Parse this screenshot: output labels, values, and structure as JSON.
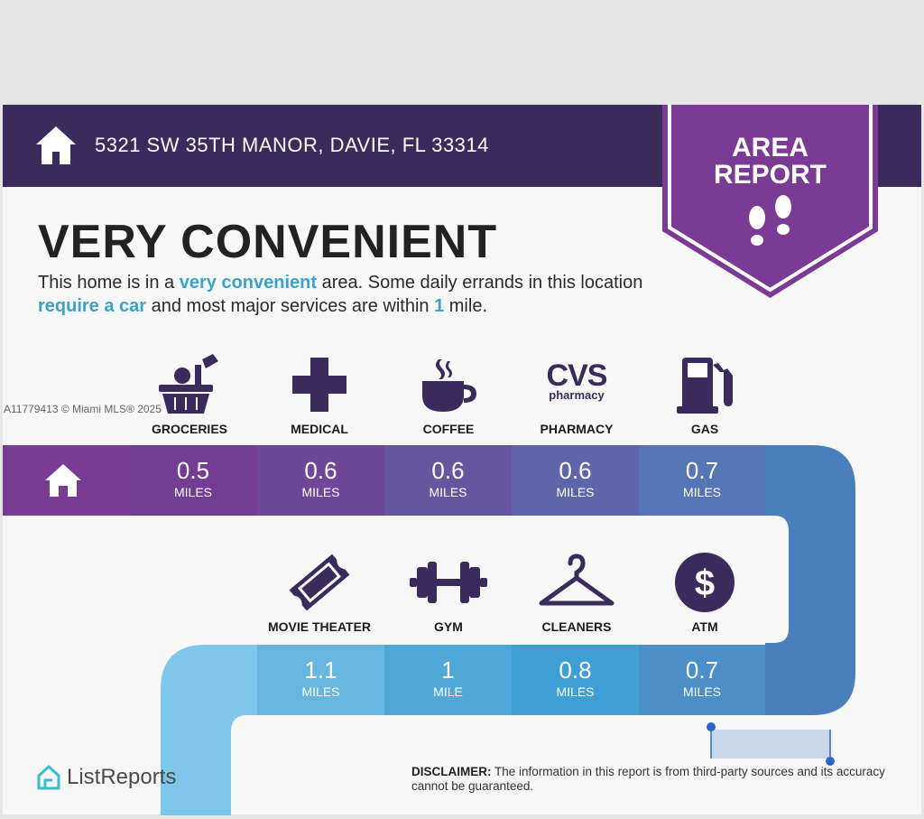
{
  "header": {
    "address": "5321 SW 35TH MANOR, DAVIE, FL 33314",
    "badge_line1": "AREA",
    "badge_line2": "REPORT"
  },
  "headline": "VERY CONVENIENT",
  "description": {
    "p1": "This home is in a ",
    "p1_hl": "very convenient",
    "p2": " area. Some daily errands in this location ",
    "p2_hl": "require a car",
    "p3": " and most major services are within ",
    "p3_hl": "1",
    "p4": " mile."
  },
  "watermark": "A11779413 © Miami MLS® 2025",
  "row1": [
    {
      "label": "GROCERIES",
      "value": "0.5",
      "unit": "MILES",
      "icon": "groceries-basket-icon"
    },
    {
      "label": "MEDICAL",
      "value": "0.6",
      "unit": "MILES",
      "icon": "medical-cross-icon"
    },
    {
      "label": "COFFEE",
      "value": "0.6",
      "unit": "MILES",
      "icon": "coffee-cup-icon"
    },
    {
      "label": "PHARMACY",
      "value": "0.6",
      "unit": "MILES",
      "icon": "cvs-pharmacy-logo"
    },
    {
      "label": "GAS",
      "value": "0.7",
      "unit": "MILES",
      "icon": "gas-pump-icon"
    }
  ],
  "row2": [
    {
      "label": "MOVIE THEATER",
      "value": "1.1",
      "unit": "MILES",
      "icon": "movie-ticket-icon"
    },
    {
      "label": "GYM",
      "value": "1",
      "unit": "MILE",
      "icon": "dumbbell-icon"
    },
    {
      "label": "CLEANERS",
      "value": "0.8",
      "unit": "MILES",
      "icon": "hanger-icon"
    },
    {
      "label": "ATM",
      "value": "0.7",
      "unit": "MILES",
      "icon": "dollar-icon"
    }
  ],
  "cvs_logo": {
    "line1": "CVS",
    "line2": "pharmacy"
  },
  "atm_symbol": "$",
  "logo_text": "ListReports",
  "disclaimer": {
    "label": "DISCLAIMER:",
    "text": " The information in this report is from third-party sources and its accuracy cannot be guaranteed."
  },
  "colors": {
    "header_bg": "#3b2a5c",
    "badge": "#7b3a93",
    "accent_text": "#3aa3c8",
    "icon": "#3b2a5c"
  }
}
